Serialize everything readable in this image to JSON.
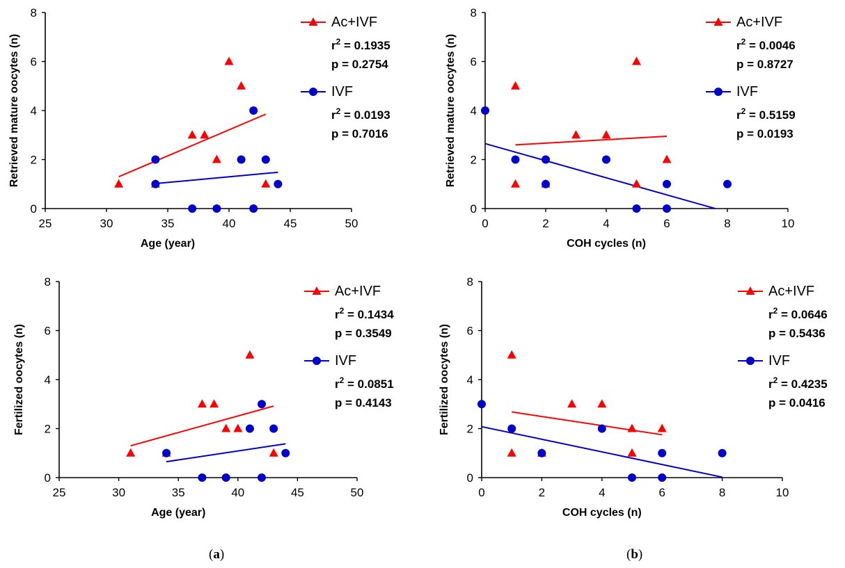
{
  "colors": {
    "acivf": "#ff0000",
    "ivf": "#0000cc",
    "axis": "#000000"
  },
  "panel_labels": [
    {
      "open": "(",
      "letter": "a",
      "close": ")"
    },
    {
      "open": "(",
      "letter": "b",
      "close": ")"
    }
  ],
  "chart_data": [
    {
      "type": "scatter",
      "title": "",
      "xlabel": "Age (year)",
      "ylabel": "Retrieved mature oocytes (n)",
      "xlim": [
        25,
        50
      ],
      "ylim": [
        0,
        8
      ],
      "xticks": [
        25,
        30,
        35,
        40,
        45,
        50
      ],
      "yticks": [
        0,
        2,
        4,
        6,
        8
      ],
      "grid": false,
      "series": [
        {
          "name": "Ac+IVF",
          "marker": "triangle",
          "color": "#ff0000",
          "r2": "0.1935",
          "p": "0.2754",
          "points": [
            [
              31,
              1
            ],
            [
              34,
              1
            ],
            [
              37,
              3
            ],
            [
              38,
              3
            ],
            [
              39,
              2
            ],
            [
              40,
              6
            ],
            [
              41,
              5
            ],
            [
              43,
              1
            ]
          ],
          "fit": [
            [
              31,
              1.3
            ],
            [
              43,
              3.85
            ]
          ]
        },
        {
          "name": "IVF",
          "marker": "circle",
          "color": "#0000cc",
          "r2": "0.0193",
          "p": "0.7016",
          "points": [
            [
              34,
              2
            ],
            [
              34,
              1
            ],
            [
              37,
              0
            ],
            [
              39,
              0
            ],
            [
              41,
              2
            ],
            [
              42,
              4
            ],
            [
              42,
              0
            ],
            [
              43,
              2
            ],
            [
              44,
              1
            ]
          ],
          "fit": [
            [
              34,
              1.02
            ],
            [
              44,
              1.48
            ]
          ]
        }
      ]
    },
    {
      "type": "scatter",
      "title": "",
      "xlabel": "COH cycles (n)",
      "ylabel": "Retrieved mature oocytes (n)",
      "xlim": [
        0,
        10
      ],
      "ylim": [
        0,
        8
      ],
      "xticks": [
        0,
        2,
        4,
        6,
        8,
        10
      ],
      "yticks": [
        0,
        2,
        4,
        6,
        8
      ],
      "grid": false,
      "series": [
        {
          "name": "Ac+IVF",
          "marker": "triangle",
          "color": "#ff0000",
          "r2": "0.0046",
          "p": "0.8727",
          "points": [
            [
              1,
              5
            ],
            [
              1,
              1
            ],
            [
              2,
              1
            ],
            [
              3,
              3
            ],
            [
              4,
              3
            ],
            [
              5,
              6
            ],
            [
              5,
              1
            ],
            [
              6,
              2
            ]
          ],
          "fit": [
            [
              1,
              2.6
            ],
            [
              6,
              2.95
            ]
          ]
        },
        {
          "name": "IVF",
          "marker": "circle",
          "color": "#0000cc",
          "r2": "0.5159",
          "p": "0.0193",
          "points": [
            [
              0,
              4
            ],
            [
              1,
              2
            ],
            [
              2,
              2
            ],
            [
              2,
              1
            ],
            [
              4,
              2
            ],
            [
              5,
              0
            ],
            [
              6,
              1
            ],
            [
              6,
              0
            ],
            [
              8,
              1
            ]
          ],
          "fit": [
            [
              0,
              2.65
            ],
            [
              7.6,
              0
            ]
          ]
        }
      ]
    },
    {
      "type": "scatter",
      "title": "",
      "xlabel": "Age (year)",
      "ylabel": "Fertilized oocytes (n)",
      "xlim": [
        25,
        50
      ],
      "ylim": [
        0,
        8
      ],
      "xticks": [
        25,
        30,
        35,
        40,
        45,
        50
      ],
      "yticks": [
        0,
        2,
        4,
        6,
        8
      ],
      "grid": false,
      "series": [
        {
          "name": "Ac+IVF",
          "marker": "triangle",
          "color": "#ff0000",
          "r2": "0.1434",
          "p": "0.3549",
          "points": [
            [
              31,
              1
            ],
            [
              34,
              1
            ],
            [
              37,
              3
            ],
            [
              38,
              3
            ],
            [
              39,
              2
            ],
            [
              40,
              2
            ],
            [
              41,
              5
            ],
            [
              43,
              1
            ]
          ],
          "fit": [
            [
              31,
              1.3
            ],
            [
              43,
              2.92
            ]
          ]
        },
        {
          "name": "IVF",
          "marker": "circle",
          "color": "#0000cc",
          "r2": "0.0851",
          "p": "0.4143",
          "points": [
            [
              34,
              1
            ],
            [
              37,
              0
            ],
            [
              39,
              0
            ],
            [
              41,
              2
            ],
            [
              42,
              3
            ],
            [
              42,
              0
            ],
            [
              43,
              2
            ],
            [
              44,
              1
            ]
          ],
          "fit": [
            [
              34,
              0.65
            ],
            [
              44,
              1.38
            ]
          ]
        }
      ]
    },
    {
      "type": "scatter",
      "title": "",
      "xlabel": "COH cycles (n)",
      "ylabel": "Fertilized oocytes (n)",
      "xlim": [
        0,
        10
      ],
      "ylim": [
        0,
        8
      ],
      "xticks": [
        0,
        2,
        4,
        6,
        8,
        10
      ],
      "yticks": [
        0,
        2,
        4,
        6,
        8
      ],
      "grid": false,
      "series": [
        {
          "name": "Ac+IVF",
          "marker": "triangle",
          "color": "#ff0000",
          "r2": "0.0646",
          "p": "0.5436",
          "points": [
            [
              1,
              5
            ],
            [
              1,
              1
            ],
            [
              2,
              1
            ],
            [
              3,
              3
            ],
            [
              4,
              3
            ],
            [
              5,
              2
            ],
            [
              5,
              1
            ],
            [
              6,
              2
            ]
          ],
          "fit": [
            [
              1,
              2.68
            ],
            [
              6,
              1.75
            ]
          ]
        },
        {
          "name": "IVF",
          "marker": "circle",
          "color": "#0000cc",
          "r2": "0.4235",
          "p": "0.0416",
          "points": [
            [
              0,
              3
            ],
            [
              1,
              2
            ],
            [
              2,
              1
            ],
            [
              4,
              2
            ],
            [
              5,
              0
            ],
            [
              6,
              1
            ],
            [
              6,
              0
            ],
            [
              8,
              1
            ]
          ],
          "fit": [
            [
              0,
              2.08
            ],
            [
              8,
              0.02
            ]
          ]
        }
      ]
    }
  ]
}
